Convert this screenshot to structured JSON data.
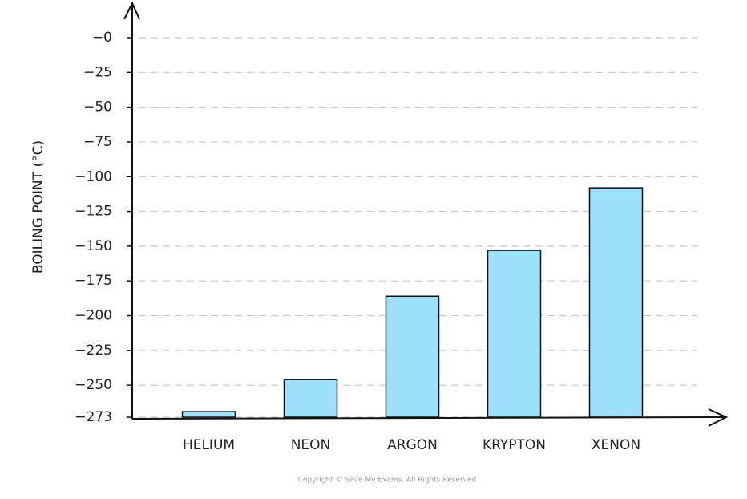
{
  "chart_data": {
    "type": "bar",
    "y_label": "BOILING  POINT (°C)",
    "categories": [
      "HELIUM",
      "NEON",
      "ARGON",
      "KRYPTON",
      "XENON"
    ],
    "values": [
      -269,
      -246,
      -186,
      -153,
      -108
    ],
    "color": "#9ee0fb",
    "ylim": [
      -273,
      0
    ],
    "yticks": [
      {
        "value": 0,
        "label": "−0"
      },
      {
        "value": -25,
        "label": "−25"
      },
      {
        "value": -50,
        "label": "−50"
      },
      {
        "value": -75,
        "label": "−75"
      },
      {
        "value": -100,
        "label": "−100"
      },
      {
        "value": -125,
        "label": "−125"
      },
      {
        "value": -150,
        "label": "−150"
      },
      {
        "value": -175,
        "label": "−175"
      },
      {
        "value": -200,
        "label": "−200"
      },
      {
        "value": -225,
        "label": "−225"
      },
      {
        "value": -250,
        "label": "−250"
      },
      {
        "value": -273,
        "label": "−273"
      }
    ],
    "grid": true,
    "footer": "Copyright © Save My Exams. All Rights Reserved"
  }
}
